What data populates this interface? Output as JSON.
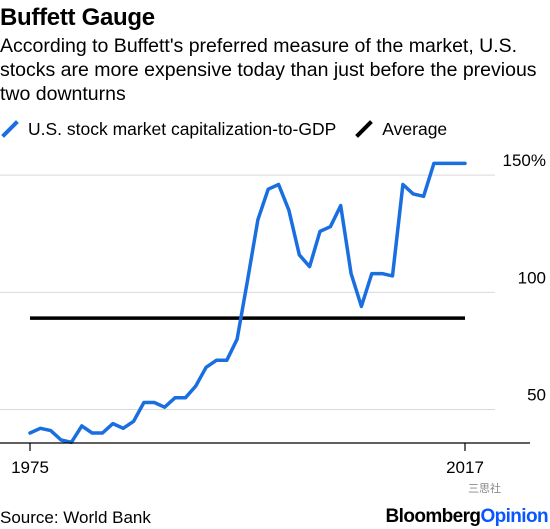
{
  "header": {
    "title": "Buffett Gauge",
    "subtitle": "According to Buffett's preferred measure of the market, U.S. stocks are more expensive today than just before the previous two downturns"
  },
  "legend": {
    "series_label": "U.S. stock market capitalization-to-GDP",
    "average_label": "Average"
  },
  "footer": {
    "source": "Source: World Bank",
    "brand_part1": "Bloomberg",
    "brand_part2": "Opinion",
    "watermark": "三思社"
  },
  "colors": {
    "series": "#1a6fe0",
    "average": "#000000",
    "gridline": "#d9d9d9",
    "brand_accent": "#0a56ff"
  },
  "chart_data": {
    "type": "line",
    "title": "Buffett Gauge",
    "xlabel": "",
    "ylabel": "",
    "x_ticks": [
      "1975",
      "2017"
    ],
    "y_ticks": [
      "50",
      "100",
      "150%"
    ],
    "xlim": [
      1975,
      2017
    ],
    "ylim": [
      37,
      165
    ],
    "grid": true,
    "legend_position": "top-left",
    "series": [
      {
        "name": "U.S. stock market capitalization-to-GDP",
        "x": [
          1975,
          1976,
          1977,
          1978,
          1979,
          1980,
          1981,
          1982,
          1983,
          1984,
          1985,
          1986,
          1987,
          1988,
          1989,
          1990,
          1991,
          1992,
          1993,
          1994,
          1995,
          1996,
          1997,
          1998,
          1999,
          2000,
          2001,
          2002,
          2003,
          2004,
          2005,
          2006,
          2007,
          2008,
          2009,
          2010,
          2011,
          2012,
          2013,
          2014,
          2015,
          2016,
          2017
        ],
        "y": [
          40,
          42,
          41,
          37,
          36,
          43,
          40,
          40,
          44,
          42,
          45,
          53,
          53,
          51,
          55,
          55,
          60,
          68,
          71,
          71,
          80,
          105,
          131,
          144,
          146,
          135,
          116,
          111,
          126,
          128,
          137,
          108,
          94,
          108,
          108,
          107,
          146,
          142,
          141,
          155,
          155,
          155,
          155
        ]
      },
      {
        "name": "Average",
        "x": [
          1975,
          2017
        ],
        "y": [
          89,
          89
        ]
      }
    ]
  }
}
